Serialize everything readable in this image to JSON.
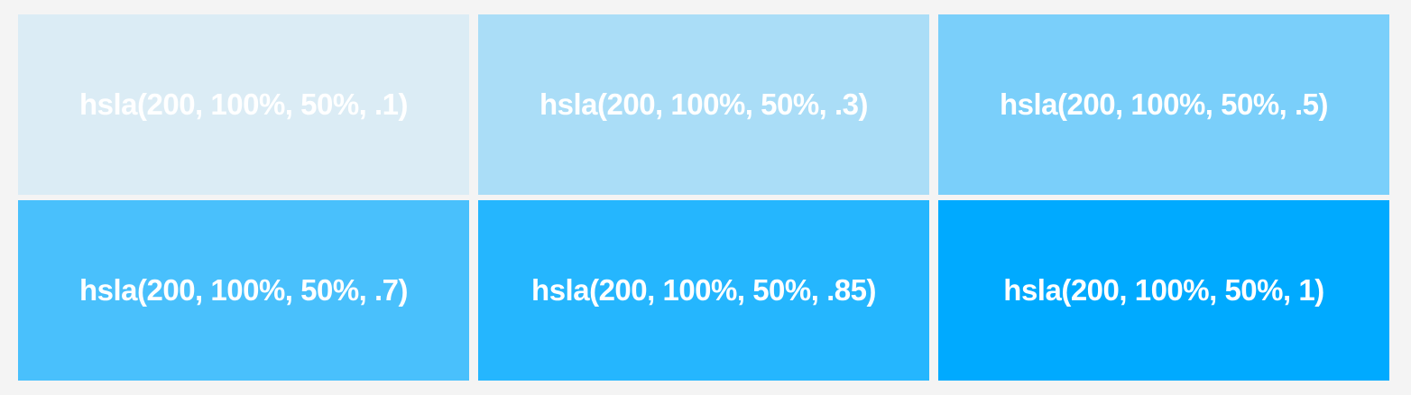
{
  "swatches": [
    {
      "label": "hsla(200, 100%, 50%, .1)",
      "color": "hsla(200, 100%, 50%, .1)"
    },
    {
      "label": "hsla(200, 100%, 50%, .3)",
      "color": "hsla(200, 100%, 50%, .3)"
    },
    {
      "label": "hsla(200, 100%, 50%, .5)",
      "color": "hsla(200, 100%, 50%, .5)"
    },
    {
      "label": "hsla(200, 100%, 50%, .7)",
      "color": "hsla(200, 100%, 50%, .7)"
    },
    {
      "label": "hsla(200, 100%, 50%, .85)",
      "color": "hsla(200, 100%, 50%, .85)"
    },
    {
      "label": "hsla(200, 100%, 50%, 1)",
      "color": "hsla(200, 100%, 50%, 1)"
    }
  ]
}
